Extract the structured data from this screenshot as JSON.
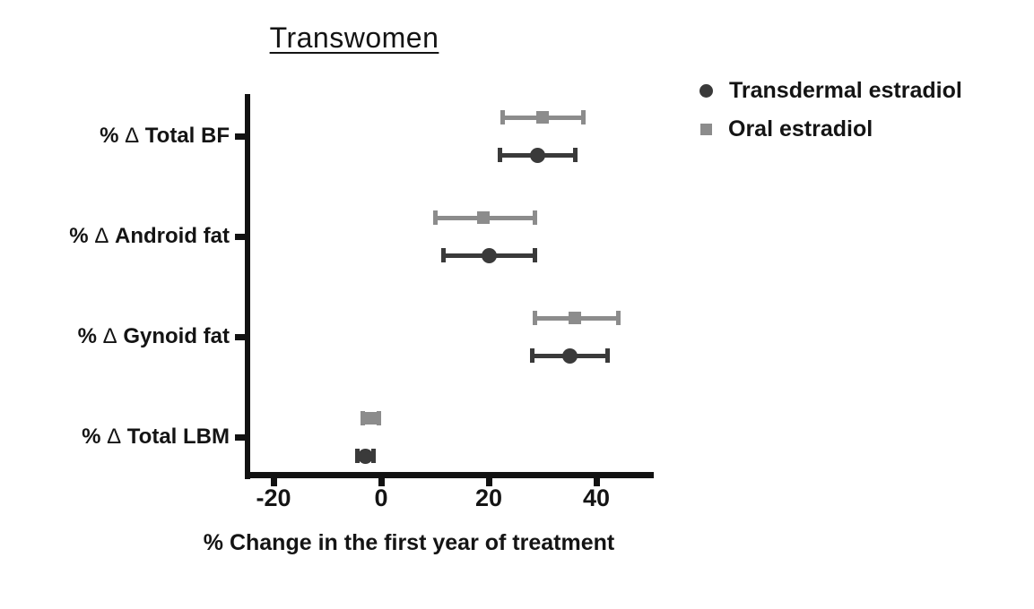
{
  "chart_data": {
    "type": "scatter",
    "subtype": "forest-plot-dot-with-error-bars",
    "title": "Transwomen",
    "xlabel": "% Change in the first year of treatment",
    "x_ticks": [
      -20,
      0,
      20,
      40
    ],
    "xlim": [
      -25,
      50
    ],
    "grid": false,
    "legend_position": "top-right",
    "categories": [
      "% Δ Total BF",
      "% Δ Android fat",
      "% Δ Gynoid fat",
      "% Δ Total LBM"
    ],
    "series": [
      {
        "name": "Transdermal estradiol",
        "marker": "circle",
        "color": "#3a3a3a",
        "means": [
          29,
          20,
          35,
          -3
        ],
        "ci_low": [
          22,
          11.5,
          28,
          -4.5
        ],
        "ci_high": [
          36,
          28.5,
          42,
          -1.5
        ]
      },
      {
        "name": "Oral estradiol",
        "marker": "square",
        "color": "#8c8c8c",
        "means": [
          30,
          19,
          36,
          -2
        ],
        "ci_low": [
          22.5,
          10,
          28.5,
          -3.5
        ],
        "ci_high": [
          37.5,
          28.5,
          44,
          -0.5
        ]
      }
    ]
  }
}
